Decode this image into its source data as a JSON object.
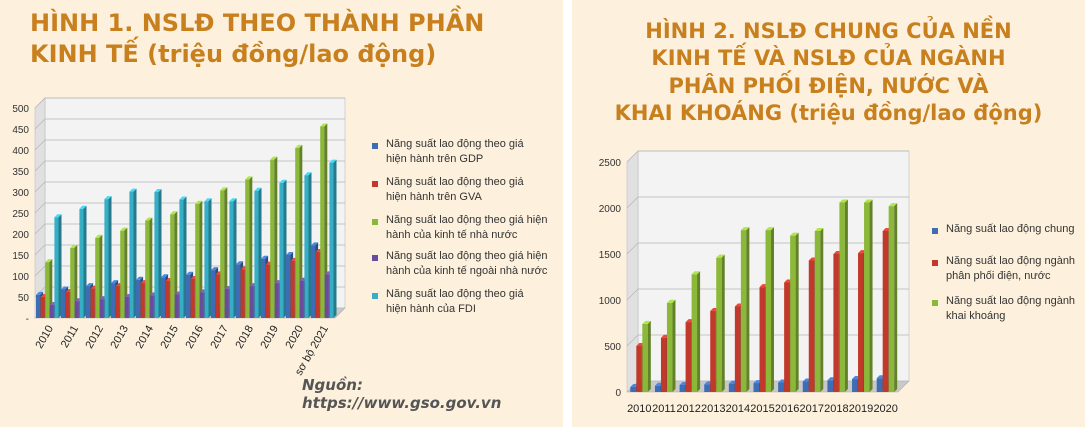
{
  "figure1": {
    "title": "HÌNH 1. NSLĐ THEO THÀNH PHẦN\nKINH TẾ (triệu đồng/lao động)",
    "source": "Nguồn: https://www.gso.gov.vn",
    "colors": [
      "#3c6db5",
      "#c0392b",
      "#8cb83a",
      "#6a4c9c",
      "#36aec6"
    ],
    "chart_data": {
      "type": "bar",
      "categories": [
        "2010",
        "2011",
        "2012",
        "2013",
        "2014",
        "2015",
        "2016",
        "2017",
        "2018",
        "2019",
        "2020",
        "sơ bộ 2021"
      ],
      "ylim": [
        0,
        500
      ],
      "yticks": [
        "-",
        "50",
        "100",
        "150",
        "200",
        "250",
        "300",
        "350",
        "400",
        "450",
        "500"
      ],
      "grid": true,
      "legend_position": "right",
      "series": [
        {
          "name": "Năng suất lao động theo giá\nhiện hành trên GDP",
          "values": [
            55,
            68,
            76,
            83,
            91,
            97,
            103,
            114,
            128,
            141,
            150,
            173
          ]
        },
        {
          "name": "Năng suất lao động theo giá\nhiện hành trên GVA",
          "values": [
            50,
            62,
            70,
            76,
            83,
            88,
            93,
            104,
            116,
            127,
            136,
            157
          ]
        },
        {
          "name": "Năng suất lao động theo giá hiện\nhành của kinh tế nhà nước",
          "values": [
            133,
            167,
            191,
            208,
            232,
            247,
            272,
            304,
            330,
            377,
            405,
            456
          ]
        },
        {
          "name": "Năng suất lao động theo giá hiện\nhành của kinh tế ngoài nhà nước",
          "values": [
            31,
            40,
            45,
            50,
            54,
            56,
            61,
            69,
            76,
            83,
            89,
            104
          ]
        },
        {
          "name": "Năng suất lao động theo giá\nhiện hành của FDI",
          "values": [
            240,
            260,
            283,
            301,
            300,
            282,
            278,
            278,
            303,
            322,
            340,
            370
          ]
        }
      ]
    }
  },
  "figure2": {
    "title": "HÌNH 2. NSLĐ CHUNG CỦA NỀN\nKINH TẾ VÀ NSLĐ CỦA NGÀNH\nPHÂN PHỐI ĐIỆN, NƯỚC VÀ\nKHAI KHOÁNG (triệu đồng/lao động)",
    "colors": [
      "#3c6db5",
      "#c0392b",
      "#8cb83a"
    ],
    "chart_data": {
      "type": "bar",
      "categories": [
        "2010",
        "2011",
        "2012",
        "2013",
        "2014",
        "2015",
        "2016",
        "2017",
        "2018",
        "2019",
        "2020"
      ],
      "ylim": [
        0,
        2500
      ],
      "yticks": [
        "0",
        "500",
        "1000",
        "1500",
        "2000",
        "2500"
      ],
      "grid": true,
      "legend_position": "right",
      "series": [
        {
          "name": "Năng suất lao động chung",
          "values": [
            55,
            68,
            76,
            83,
            91,
            97,
            103,
            114,
            128,
            141,
            150
          ]
        },
        {
          "name": "Năng suất lao động ngành\nphân phối điện, nước",
          "values": [
            500,
            590,
            760,
            880,
            930,
            1140,
            1190,
            1430,
            1500,
            1510,
            1750
          ]
        },
        {
          "name": "Năng suất lao động ngành\nkhai khoáng",
          "values": [
            740,
            970,
            1280,
            1460,
            1760,
            1760,
            1700,
            1750,
            2060,
            2060,
            2020
          ]
        }
      ]
    }
  }
}
